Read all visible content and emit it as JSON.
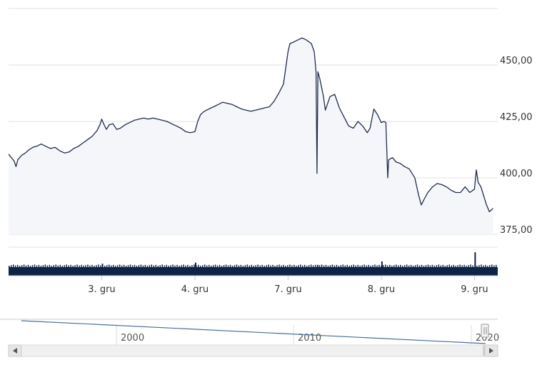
{
  "chart_data": {
    "type": "area",
    "y_ticks": [
      375,
      400,
      425,
      450
    ],
    "y_tick_labels": [
      "375,00",
      "400,00",
      "425,00",
      "450,00"
    ],
    "ylim": [
      375,
      475
    ],
    "x_tick_labels": [
      "3. gru",
      "4. gru",
      "7. gru",
      "8. gru",
      "9. gru"
    ],
    "x_tick_positions": [
      1,
      2,
      3,
      4,
      5
    ],
    "xlim": [
      0,
      5.25
    ],
    "grid": true,
    "series": [
      {
        "values": [
          [
            0.0,
            410.5
          ],
          [
            0.03,
            409.0
          ],
          [
            0.06,
            407.5
          ],
          [
            0.08,
            405.0
          ],
          [
            0.1,
            408.0
          ],
          [
            0.14,
            410.0
          ],
          [
            0.18,
            411.0
          ],
          [
            0.22,
            412.5
          ],
          [
            0.26,
            413.5
          ],
          [
            0.3,
            414.0
          ],
          [
            0.35,
            415.0
          ],
          [
            0.4,
            414.0
          ],
          [
            0.45,
            413.0
          ],
          [
            0.5,
            413.5
          ],
          [
            0.55,
            412.0
          ],
          [
            0.6,
            411.0
          ],
          [
            0.65,
            411.5
          ],
          [
            0.7,
            413.0
          ],
          [
            0.75,
            414.0
          ],
          [
            0.8,
            415.5
          ],
          [
            0.85,
            417.0
          ],
          [
            0.9,
            418.5
          ],
          [
            0.95,
            421.0
          ],
          [
            0.98,
            423.5
          ],
          [
            1.0,
            426.0
          ],
          [
            1.02,
            424.0
          ],
          [
            1.05,
            421.5
          ],
          [
            1.08,
            423.5
          ],
          [
            1.12,
            424.0
          ],
          [
            1.16,
            421.5
          ],
          [
            1.2,
            422.0
          ],
          [
            1.25,
            423.5
          ],
          [
            1.3,
            424.5
          ],
          [
            1.35,
            425.5
          ],
          [
            1.4,
            426.0
          ],
          [
            1.45,
            426.5
          ],
          [
            1.5,
            426.0
          ],
          [
            1.55,
            426.5
          ],
          [
            1.6,
            426.0
          ],
          [
            1.65,
            425.5
          ],
          [
            1.7,
            425.0
          ],
          [
            1.75,
            424.0
          ],
          [
            1.8,
            423.0
          ],
          [
            1.85,
            422.0
          ],
          [
            1.9,
            420.5
          ],
          [
            1.95,
            420.0
          ],
          [
            2.0,
            420.5
          ],
          [
            2.03,
            425.0
          ],
          [
            2.06,
            428.0
          ],
          [
            2.1,
            429.5
          ],
          [
            2.15,
            430.5
          ],
          [
            2.2,
            431.5
          ],
          [
            2.25,
            432.5
          ],
          [
            2.3,
            433.5
          ],
          [
            2.35,
            433.0
          ],
          [
            2.4,
            432.5
          ],
          [
            2.45,
            431.5
          ],
          [
            2.5,
            430.5
          ],
          [
            2.55,
            430.0
          ],
          [
            2.6,
            429.5
          ],
          [
            2.65,
            430.0
          ],
          [
            2.7,
            430.5
          ],
          [
            2.75,
            431.0
          ],
          [
            2.8,
            431.5
          ],
          [
            2.85,
            434.0
          ],
          [
            2.9,
            437.5
          ],
          [
            2.95,
            441.5
          ],
          [
            3.0,
            456.0
          ],
          [
            3.02,
            459.5
          ],
          [
            3.05,
            460.0
          ],
          [
            3.1,
            461.0
          ],
          [
            3.15,
            462.0
          ],
          [
            3.2,
            461.0
          ],
          [
            3.25,
            459.5
          ],
          [
            3.28,
            456.0
          ],
          [
            3.3,
            447.0
          ],
          [
            3.31,
            402.0
          ],
          [
            3.32,
            447.0
          ],
          [
            3.34,
            444.0
          ],
          [
            3.38,
            436.0
          ],
          [
            3.4,
            430.0
          ],
          [
            3.45,
            436.0
          ],
          [
            3.5,
            437.0
          ],
          [
            3.55,
            431.0
          ],
          [
            3.6,
            427.0
          ],
          [
            3.65,
            423.0
          ],
          [
            3.7,
            422.0
          ],
          [
            3.75,
            425.0
          ],
          [
            3.8,
            423.0
          ],
          [
            3.85,
            420.0
          ],
          [
            3.88,
            422.0
          ],
          [
            3.92,
            430.5
          ],
          [
            3.96,
            428.0
          ],
          [
            4.0,
            424.5
          ],
          [
            4.03,
            425.0
          ],
          [
            4.05,
            424.5
          ],
          [
            4.06,
            412.0
          ],
          [
            4.07,
            400.0
          ],
          [
            4.08,
            408.0
          ],
          [
            4.12,
            409.0
          ],
          [
            4.16,
            407.0
          ],
          [
            4.2,
            406.5
          ],
          [
            4.25,
            405.0
          ],
          [
            4.3,
            404.0
          ],
          [
            4.33,
            402.0
          ],
          [
            4.36,
            400.0
          ],
          [
            4.4,
            392.5
          ],
          [
            4.43,
            388.0
          ],
          [
            4.46,
            390.5
          ],
          [
            4.5,
            393.5
          ],
          [
            4.55,
            396.0
          ],
          [
            4.6,
            397.5
          ],
          [
            4.65,
            397.0
          ],
          [
            4.7,
            396.0
          ],
          [
            4.75,
            394.5
          ],
          [
            4.8,
            393.5
          ],
          [
            4.85,
            393.5
          ],
          [
            4.9,
            396.0
          ],
          [
            4.95,
            393.5
          ],
          [
            5.0,
            395.0
          ],
          [
            5.02,
            403.5
          ],
          [
            5.04,
            398.0
          ],
          [
            5.07,
            396.0
          ],
          [
            5.1,
            392.0
          ],
          [
            5.13,
            388.0
          ],
          [
            5.16,
            385.0
          ],
          [
            5.2,
            386.5
          ]
        ]
      }
    ],
    "volume": {
      "bar_count": 230,
      "spikes": [
        [
          1.0,
          3
        ],
        [
          2.0,
          4
        ],
        [
          3.31,
          2
        ],
        [
          4.0,
          5
        ],
        [
          5.0,
          13
        ]
      ]
    },
    "navigator": {
      "labels": [
        "2000",
        "2010",
        "2020"
      ],
      "scroll_left_icon": "triangle-left-icon",
      "scroll_right_icon": "triangle-right-icon",
      "handle_icon": "grip-handle-icon"
    },
    "colors": {
      "line": "#1f2d4c",
      "area": "#f4f6f9",
      "grid": "#e2e2e2",
      "volume": "#0f2347",
      "navigator_line": "#4a6f9a",
      "scrollbar": "#f0f0f0"
    }
  }
}
